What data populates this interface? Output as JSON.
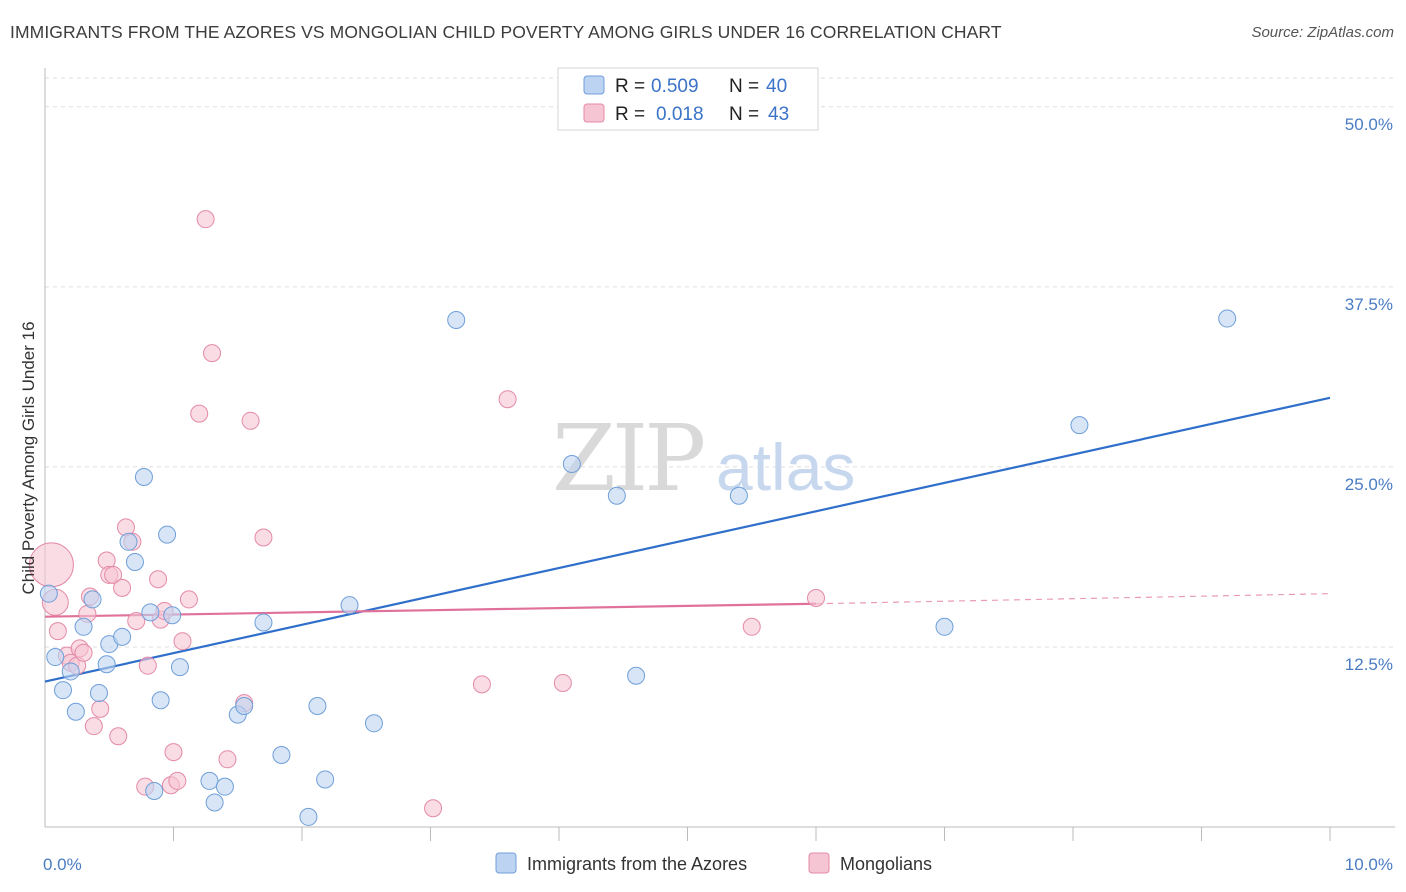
{
  "title": "IMMIGRANTS FROM THE AZORES VS MONGOLIAN CHILD POVERTY AMONG GIRLS UNDER 16 CORRELATION CHART",
  "source": "Source: ZipAtlas.com",
  "watermark": {
    "part1": "ZIP",
    "part2": "atlas"
  },
  "legend": {
    "rows": [
      {
        "r_label": "R =",
        "r_value": "0.509",
        "n_label": "N =",
        "n_value": "40"
      },
      {
        "r_label": "R =",
        "r_value": "0.018",
        "n_label": "N =",
        "n_value": "43"
      }
    ]
  },
  "bottom_legend": [
    "Immigrants from the Azores",
    "Mongolians"
  ],
  "colors": {
    "blue_fill": "#bcd3f2",
    "blue_stroke": "#6f9fd8",
    "blue_line": "#2f6fcb",
    "pink_fill": "#f6c5d4",
    "pink_stroke": "#e48aa7",
    "pink_line": "#e0719a",
    "grid": "#dddddd"
  },
  "chart_data": {
    "type": "scatter",
    "title": "IMMIGRANTS FROM THE AZORES VS MONGOLIAN CHILD POVERTY AMONG GIRLS UNDER 16 CORRELATION CHART",
    "xlabel": "",
    "ylabel": "Child Poverty Among Girls Under 16",
    "xlim": [
      0,
      10
    ],
    "ylim": [
      0,
      52
    ],
    "x_tick_labels": [
      {
        "value": 0,
        "label": "0.0%"
      },
      {
        "value": 10,
        "label": "10.0%"
      }
    ],
    "y_tick_labels": [
      {
        "value": 12.5,
        "label": "12.5%"
      },
      {
        "value": 25,
        "label": "25.0%"
      },
      {
        "value": 37.5,
        "label": "37.5%"
      },
      {
        "value": 50,
        "label": "50.0%"
      }
    ],
    "x_minor_ticks": [
      1,
      2,
      3,
      4,
      5,
      6,
      7,
      8,
      9,
      10
    ],
    "grid": true,
    "series": [
      {
        "name": "Immigrants from the Azores",
        "color": "blue",
        "points": [
          [
            0.03,
            16.2
          ],
          [
            0.08,
            11.8
          ],
          [
            0.14,
            9.5
          ],
          [
            0.2,
            10.8
          ],
          [
            0.24,
            8.0
          ],
          [
            0.3,
            13.9
          ],
          [
            0.37,
            15.8
          ],
          [
            0.42,
            9.3
          ],
          [
            0.48,
            11.3
          ],
          [
            0.5,
            12.7
          ],
          [
            0.6,
            13.2
          ],
          [
            0.65,
            19.8
          ],
          [
            0.7,
            18.4
          ],
          [
            0.77,
            24.3
          ],
          [
            0.82,
            14.9
          ],
          [
            0.85,
            2.5
          ],
          [
            0.9,
            8.8
          ],
          [
            0.95,
            20.3
          ],
          [
            0.99,
            14.7
          ],
          [
            1.05,
            11.1
          ],
          [
            1.28,
            3.2
          ],
          [
            1.32,
            1.7
          ],
          [
            1.4,
            2.8
          ],
          [
            1.5,
            7.8
          ],
          [
            1.55,
            8.4
          ],
          [
            1.7,
            14.2
          ],
          [
            1.84,
            5.0
          ],
          [
            2.05,
            0.7
          ],
          [
            2.12,
            8.4
          ],
          [
            2.18,
            3.3
          ],
          [
            2.37,
            15.4
          ],
          [
            2.56,
            7.2
          ],
          [
            3.2,
            35.2
          ],
          [
            4.1,
            25.2
          ],
          [
            4.45,
            23.0
          ],
          [
            4.6,
            10.5
          ],
          [
            5.4,
            23.0
          ],
          [
            7.0,
            13.9
          ],
          [
            8.05,
            27.9
          ],
          [
            9.2,
            35.3
          ]
        ],
        "trend": {
          "x": [
            0,
            10
          ],
          "y": [
            10.1,
            29.8
          ]
        }
      },
      {
        "name": "Mongolians",
        "color": "pink",
        "sizes": {
          "0.05,18.2": "large",
          "0.08,15.6": "medium"
        },
        "points": [
          [
            0.05,
            18.2
          ],
          [
            0.08,
            15.6
          ],
          [
            0.1,
            13.6
          ],
          [
            0.17,
            11.9
          ],
          [
            0.2,
            11.4
          ],
          [
            0.25,
            11.2
          ],
          [
            0.27,
            12.4
          ],
          [
            0.3,
            12.1
          ],
          [
            0.33,
            14.8
          ],
          [
            0.35,
            16.0
          ],
          [
            0.38,
            7.0
          ],
          [
            0.43,
            8.2
          ],
          [
            0.48,
            18.5
          ],
          [
            0.5,
            17.5
          ],
          [
            0.53,
            17.5
          ],
          [
            0.57,
            6.3
          ],
          [
            0.6,
            16.6
          ],
          [
            0.63,
            20.8
          ],
          [
            0.68,
            19.8
          ],
          [
            0.71,
            14.3
          ],
          [
            0.78,
            2.8
          ],
          [
            0.8,
            11.2
          ],
          [
            0.88,
            17.2
          ],
          [
            0.9,
            14.4
          ],
          [
            0.93,
            15.0
          ],
          [
            0.98,
            2.9
          ],
          [
            1.0,
            5.2
          ],
          [
            1.03,
            3.2
          ],
          [
            1.07,
            12.9
          ],
          [
            1.12,
            15.8
          ],
          [
            1.2,
            28.7
          ],
          [
            1.25,
            42.2
          ],
          [
            1.3,
            32.9
          ],
          [
            1.42,
            4.7
          ],
          [
            1.55,
            8.6
          ],
          [
            1.6,
            28.2
          ],
          [
            1.7,
            20.1
          ],
          [
            3.02,
            1.3
          ],
          [
            3.4,
            9.9
          ],
          [
            3.6,
            29.7
          ],
          [
            4.03,
            10.0
          ],
          [
            5.5,
            13.9
          ],
          [
            6.0,
            15.9
          ]
        ],
        "trend": {
          "x": [
            0,
            6.0
          ],
          "y": [
            14.6,
            15.5
          ]
        },
        "trend_dashed": {
          "x": [
            6.0,
            10
          ],
          "y": [
            15.5,
            16.2
          ]
        }
      }
    ]
  }
}
